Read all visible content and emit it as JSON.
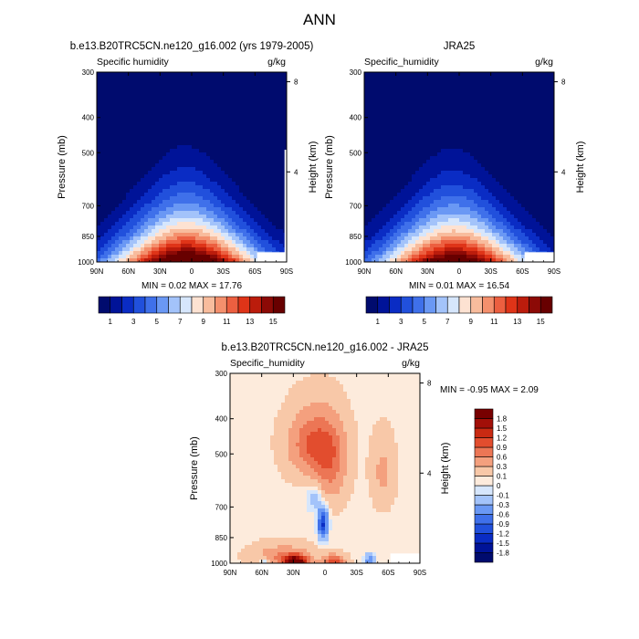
{
  "main_title": "ANN",
  "chart_data": [
    {
      "type": "heatmap",
      "panel": "model",
      "title": "b.e13.B20TRC5CN.ne120_g16.002 (yrs 1979-2005)",
      "left_label": "Specific humidity",
      "units": "g/kg",
      "ylabel": "Pressure (mb)",
      "ylabel_right": "Height (km)",
      "x_tick_labels": [
        "90N",
        "60N",
        "30N",
        "0",
        "30S",
        "60S",
        "90S"
      ],
      "x_ticks": [
        90,
        60,
        30,
        0,
        -30,
        -60,
        -90
      ],
      "y_tick_labels": [
        "300",
        "400",
        "500",
        "700",
        "850",
        "1000"
      ],
      "y_ticks": [
        300,
        400,
        500,
        700,
        850,
        1000
      ],
      "height_tick_labels": [
        "8",
        "4"
      ],
      "height_ticks": [
        8,
        4
      ],
      "ylim": [
        300,
        1000
      ],
      "xlim": [
        90,
        -90
      ],
      "min": 0.02,
      "max": 17.76,
      "min_text": "MIN =  0.02  MAX =  17.76",
      "contour_levels": [
        1,
        2,
        3,
        4,
        5,
        6,
        7,
        8,
        9,
        10,
        11,
        12,
        13,
        14,
        15
      ],
      "colorbar_labels": [
        "1",
        "3",
        "5",
        "7",
        "9",
        "11",
        "13",
        "15"
      ]
    },
    {
      "type": "heatmap",
      "panel": "obs",
      "title": "JRA25",
      "left_label": "Specific_humidity",
      "units": "g/kg",
      "ylabel": "Pressure (mb)",
      "ylabel_right": "Height (km)",
      "x_tick_labels": [
        "90N",
        "60N",
        "30N",
        "0",
        "30S",
        "60S",
        "90S"
      ],
      "x_ticks": [
        90,
        60,
        30,
        0,
        -30,
        -60,
        -90
      ],
      "y_tick_labels": [
        "300",
        "400",
        "500",
        "700",
        "850",
        "1000"
      ],
      "y_ticks": [
        300,
        400,
        500,
        700,
        850,
        1000
      ],
      "height_tick_labels": [
        "8",
        "4"
      ],
      "height_ticks": [
        8,
        4
      ],
      "ylim": [
        300,
        1000
      ],
      "xlim": [
        90,
        -90
      ],
      "min": 0.01,
      "max": 16.54,
      "min_text": "MIN =  0.01  MAX =  16.54",
      "contour_levels": [
        1,
        2,
        3,
        4,
        5,
        6,
        7,
        8,
        9,
        10,
        11,
        12,
        13,
        14,
        15
      ],
      "colorbar_labels": [
        "1",
        "3",
        "5",
        "7",
        "9",
        "11",
        "13",
        "15"
      ]
    },
    {
      "type": "heatmap",
      "panel": "diff",
      "title": "b.e13.B20TRC5CN.ne120_g16.002 - JRA25",
      "left_label": "Specific_humidity",
      "units": "g/kg",
      "ylabel": "Pressure (mb)",
      "ylabel_right": "Height (km)",
      "x_tick_labels": [
        "90N",
        "60N",
        "30N",
        "0",
        "30S",
        "60S",
        "90S"
      ],
      "x_ticks": [
        90,
        60,
        30,
        0,
        -30,
        -60,
        -90
      ],
      "y_tick_labels": [
        "300",
        "400",
        "500",
        "700",
        "850",
        "1000"
      ],
      "y_ticks": [
        300,
        400,
        500,
        700,
        850,
        1000
      ],
      "height_tick_labels": [
        "8",
        "4"
      ],
      "height_ticks": [
        8,
        4
      ],
      "ylim": [
        300,
        1000
      ],
      "xlim": [
        90,
        -90
      ],
      "min": -0.95,
      "max": 2.09,
      "min_text": "MIN = -0.95  MAX =   2.09",
      "contour_levels": [
        -1.8,
        -1.5,
        -1.2,
        -0.9,
        -0.6,
        -0.3,
        -0.1,
        0,
        0.1,
        0.3,
        0.6,
        0.9,
        1.2,
        1.5,
        1.8
      ],
      "colorbar_labels": [
        "1.8",
        "1.5",
        "1.2",
        "0.9",
        "0.6",
        "0.3",
        "0.1",
        "0",
        "-0.1",
        "-0.3",
        "-0.6",
        "-0.9",
        "-1.2",
        "-1.5",
        "-1.8"
      ]
    }
  ],
  "colors": {
    "seq": [
      "#000b6e",
      "#001398",
      "#0a2cc4",
      "#2150dc",
      "#3f70ea",
      "#6a98f4",
      "#a3c3fa",
      "#d6e6fc",
      "#fde2d2",
      "#f8bc9d",
      "#f4906d",
      "#ec5f40",
      "#df3418",
      "#bb1c0c",
      "#8c0a06",
      "#680000"
    ],
    "div": [
      "#000b6e",
      "#001398",
      "#0a2cc4",
      "#2150dc",
      "#3f70ea",
      "#6a98f4",
      "#a3c3fa",
      "#d6e6fc",
      "#fdebdc",
      "#f8c8a8",
      "#f4a07e",
      "#ec7655",
      "#e24d2e",
      "#c92a12",
      "#a20f08",
      "#780000"
    ]
  }
}
